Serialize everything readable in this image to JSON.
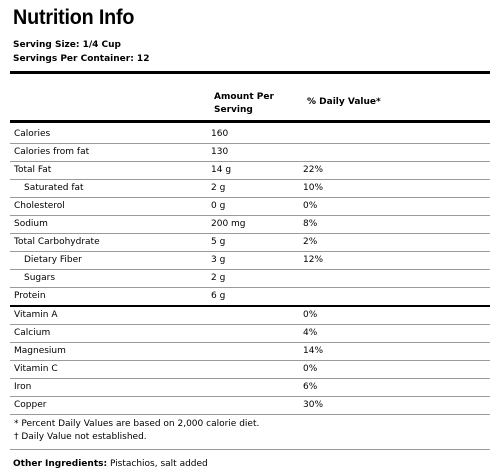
{
  "title": "Nutrition Info",
  "serving_size": "Serving Size: 1/4 Cup",
  "servings_per_container": "Servings Per Container: 12",
  "headers": {
    "amount": "Amount Per Serving",
    "daily_value": "% Daily Value*"
  },
  "rows": [
    {
      "name": "Calories",
      "amount": "160",
      "dv": "",
      "indent": false
    },
    {
      "name": "Calories from fat",
      "amount": "130",
      "dv": "",
      "indent": false
    },
    {
      "name": "Total Fat",
      "amount": "14 g",
      "dv": "22%",
      "indent": false
    },
    {
      "name": "Saturated fat",
      "amount": "2 g",
      "dv": "10%",
      "indent": true
    },
    {
      "name": "Cholesterol",
      "amount": "0 g",
      "dv": "0%",
      "indent": false
    },
    {
      "name": "Sodium",
      "amount": "200 mg",
      "dv": "8%",
      "indent": false
    },
    {
      "name": "Total Carbohydrate",
      "amount": "5 g",
      "dv": "2%",
      "indent": false
    },
    {
      "name": "Dietary Fiber",
      "amount": "3 g",
      "dv": "12%",
      "indent": true
    },
    {
      "name": "Sugars",
      "amount": "2 g",
      "dv": "",
      "indent": true
    },
    {
      "name": "Protein",
      "amount": "6 g",
      "dv": "",
      "indent": false
    },
    {
      "name": "Vitamin A",
      "amount": "",
      "dv": "0%",
      "indent": false
    },
    {
      "name": "Calcium",
      "amount": "",
      "dv": "4%",
      "indent": false
    },
    {
      "name": "Magnesium",
      "amount": "",
      "dv": "14%",
      "indent": false
    },
    {
      "name": "Vitamin C",
      "amount": "",
      "dv": "0%",
      "indent": false
    },
    {
      "name": "Iron",
      "amount": "",
      "dv": "6%",
      "indent": false
    },
    {
      "name": "Copper",
      "amount": "",
      "dv": "30%",
      "indent": false
    }
  ],
  "notes": [
    "* Percent Daily Values are based on 2,000 calorie diet.",
    "† Daily Value not established."
  ],
  "other_ingredients": {
    "label": "Other Ingredients:",
    "value": " Pistachios, salt added"
  }
}
